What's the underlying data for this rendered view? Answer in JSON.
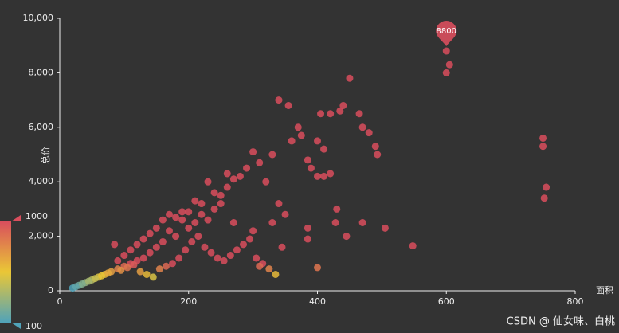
{
  "chart_data": {
    "type": "scatter",
    "x_label": "面积",
    "y_label": "总价",
    "xlim": [
      0,
      800
    ],
    "xticks": [
      0,
      200,
      400,
      600,
      800
    ],
    "ylim": [
      0,
      10000
    ],
    "yticks": [
      0,
      {
        "value": 2000,
        "label": "2,000"
      },
      {
        "value": 4000,
        "label": "4,000"
      },
      {
        "value": 6000,
        "label": "6,000"
      },
      {
        "value": 8000,
        "label": "8,000"
      },
      {
        "value": 10000,
        "label": "10,000"
      }
    ],
    "visual_map": {
      "min": 100,
      "max": 1000,
      "colors": [
        "#50a3ba",
        "#eac736",
        "#d94e5d"
      ]
    },
    "mark_point": {
      "x": 600,
      "value": 8800
    },
    "watermark": "CSDN @ 仙女味、白桃",
    "x": [
      600,
      605,
      600,
      750,
      750,
      755,
      752,
      548,
      505,
      470,
      445,
      430,
      428,
      400,
      385,
      385,
      450,
      440,
      435,
      465,
      420,
      405,
      470,
      480,
      490,
      493,
      340,
      355,
      370,
      375,
      360,
      400,
      410,
      420,
      400,
      410,
      385,
      390,
      330,
      310,
      300,
      290,
      320,
      280,
      260,
      340,
      350,
      330,
      345,
      300,
      270,
      250,
      240,
      230,
      220,
      210,
      200,
      190,
      180,
      170,
      160,
      150,
      140,
      130,
      120,
      110,
      100,
      90,
      85,
      80,
      70,
      60,
      50,
      40,
      30,
      20,
      25,
      35,
      45,
      55,
      65,
      75,
      95,
      105,
      115,
      125,
      135,
      145,
      155,
      165,
      175,
      185,
      195,
      205,
      215,
      225,
      235,
      245,
      255,
      265,
      275,
      285,
      295,
      305,
      315,
      325,
      335,
      310,
      250,
      240,
      230,
      260,
      270,
      220,
      200,
      210,
      180,
      190,
      160,
      170,
      150,
      140,
      130,
      120,
      110,
      100,
      90
    ],
    "values": [
      8800,
      8300,
      8000,
      5600,
      5300,
      3800,
      3400,
      1650,
      2300,
      2500,
      2000,
      3000,
      2500,
      850,
      2300,
      1900,
      7800,
      6800,
      6600,
      6500,
      6500,
      6500,
      6000,
      5800,
      5300,
      5000,
      7000,
      6800,
      6000,
      5700,
      5500,
      5500,
      5200,
      4300,
      4200,
      4200,
      4800,
      4500,
      5000,
      4700,
      5100,
      4500,
      4000,
      4200,
      3800,
      3200,
      2800,
      2500,
      1600,
      2200,
      2500,
      3500,
      3000,
      2600,
      2800,
      2500,
      2300,
      2600,
      2000,
      2200,
      1800,
      1600,
      1400,
      1200,
      1100,
      1000,
      900,
      800,
      1700,
      700,
      600,
      500,
      400,
      300,
      200,
      100,
      150,
      250,
      350,
      450,
      550,
      650,
      750,
      850,
      950,
      700,
      600,
      500,
      800,
      900,
      1000,
      1200,
      1500,
      1800,
      2000,
      1600,
      1400,
      1200,
      1100,
      1300,
      1500,
      1700,
      1900,
      1200,
      1000,
      800,
      600,
      900,
      3200,
      3600,
      4000,
      4300,
      4100,
      3200,
      2900,
      3300,
      2700,
      2900,
      2600,
      2800,
      2300,
      2100,
      1900,
      1700,
      1500,
      1300,
      1100
    ]
  }
}
